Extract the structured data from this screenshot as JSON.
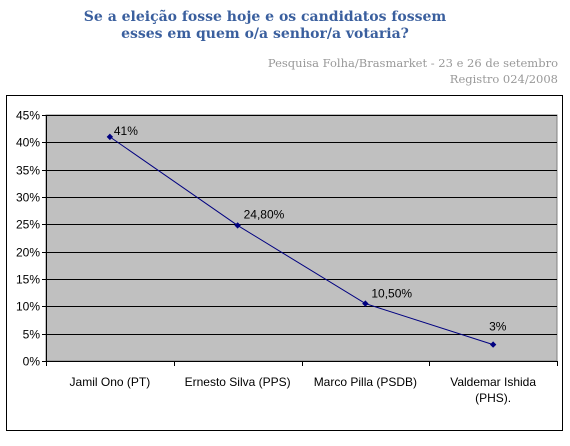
{
  "header": {
    "title_line1": "Se a eleição fosse hoje e os candidatos fossem",
    "title_line2": "esses em quem o/a senhor/a votaria?",
    "source_line1": "Pesquisa Folha/Brasmarket - 23 e 26 de setembro",
    "source_line2": "Registro 024/2008"
  },
  "chart_data": {
    "type": "line",
    "title": "Se a eleição fosse hoje e os candidatos fossem esses em quem o/a senhor/a votaria?",
    "categories": [
      "Jamil Ono (PT)",
      "Ernesto Silva (PPS)",
      "Marco Pilla (PSDB)",
      "Valdemar Ishida (PHS)."
    ],
    "category_lines": [
      [
        "Jamil Ono (PT)"
      ],
      [
        "Ernesto Silva (PPS)"
      ],
      [
        "Marco Pilla (PSDB)"
      ],
      [
        "Valdemar Ishida",
        "(PHS)."
      ]
    ],
    "values": [
      41,
      24.8,
      10.5,
      3
    ],
    "data_labels": [
      "41%",
      "24,80%",
      "10,50%",
      "3%"
    ],
    "yticks": [
      "0%",
      "5%",
      "10%",
      "15%",
      "20%",
      "25%",
      "30%",
      "35%",
      "40%",
      "45%"
    ],
    "ylim": [
      0,
      45
    ],
    "grid": true,
    "legend": "none",
    "colors": {
      "plot_background": "#c0c0c0",
      "line": "#000080",
      "gridline": "#000000"
    }
  }
}
